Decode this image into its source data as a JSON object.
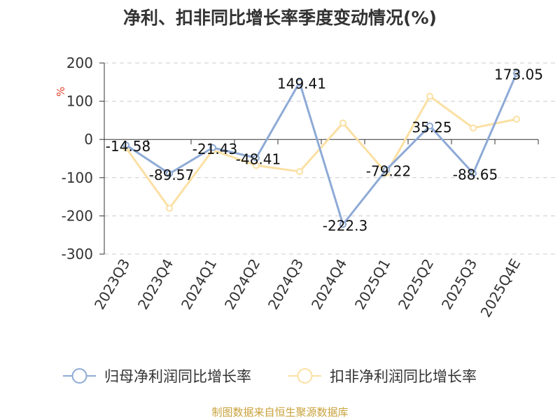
{
  "title": "净利、扣非同比增长率季度变动情况(%)",
  "source": "制图数据来自恒生聚源数据库",
  "colors": {
    "series1": "#8eaad6",
    "series2": "#fbe0a3",
    "title": "#333333",
    "axis": "#333333",
    "tick_label": "#333333",
    "grid": "#cccccc",
    "unit": "#e0422c",
    "source": "#c9a23b"
  },
  "chart_data": {
    "type": "line",
    "title": "净利、扣非同比增长率季度变动情况(%)",
    "ylabel": "%",
    "categories": [
      "2023Q3",
      "2023Q4",
      "2024Q1",
      "2024Q2",
      "2024Q3",
      "2024Q4",
      "2025Q1",
      "2025Q2",
      "2025Q3",
      "2025Q4E"
    ],
    "ylim": [
      -300,
      200
    ],
    "yticks": [
      200,
      100,
      0,
      -100,
      -200,
      -300
    ],
    "grid": true,
    "legend_position": "bottom",
    "series": [
      {
        "name": "归母净利润同比增长率",
        "values": [
          -14.58,
          -89.57,
          -21.43,
          -48.41,
          149.41,
          -222.3,
          -79.22,
          35.25,
          -88.65,
          173.05
        ],
        "labels": [
          "-14.58",
          "-89.57",
          "-21.43",
          "-48.41",
          "149.41",
          "-222.3",
          "-79.22",
          "35.25",
          "-88.65",
          "173.05"
        ]
      },
      {
        "name": "扣非净利润同比增长率",
        "values": [
          -22,
          -180,
          -28,
          -68,
          -84,
          43,
          -88,
          113,
          30,
          53
        ]
      }
    ]
  }
}
